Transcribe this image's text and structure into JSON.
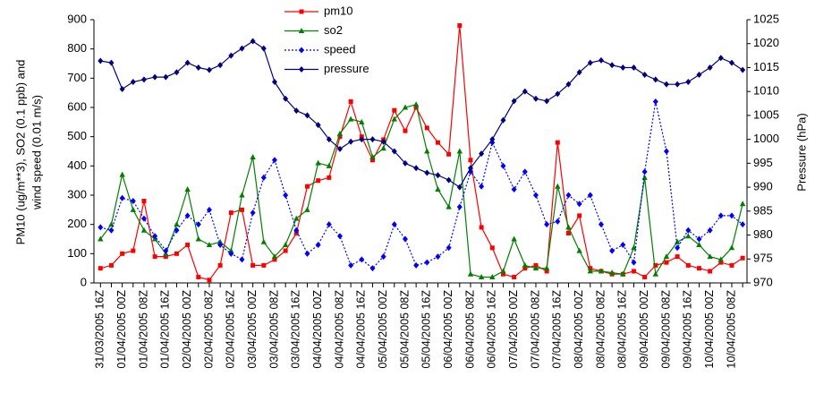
{
  "chart_data": {
    "type": "line",
    "y_label": [
      "PM10 (ug/m**3), SO2 (0.1 ppb) and",
      "wind speed (0.01 m/s)"
    ],
    "y2_label": "Pressure (hPa)",
    "categories": [
      "31/03/2005 16Z",
      null,
      "01/04/2005 00Z",
      null,
      "01/04/2005 08Z",
      null,
      "01/04/2005 16Z",
      null,
      "02/04/2005 00Z",
      null,
      "02/04/2005 08Z",
      null,
      "02/04/2005 16Z",
      null,
      "03/04/2005 00Z",
      null,
      "03/04/2005 08Z",
      null,
      "03/04/2005 16Z",
      null,
      "04/04/2005 00Z",
      null,
      "04/04/2005 08Z",
      null,
      "04/04/2005 16Z",
      null,
      "05/04/2005 00Z",
      null,
      "05/04/2005 08Z",
      null,
      "05/04/2005 16Z",
      null,
      "06/04/2005 00Z",
      null,
      "06/04/2005 08Z",
      null,
      "06/04/2005 16Z",
      null,
      "07/04/2005 00Z",
      null,
      "07/04/2005 08Z",
      null,
      "07/04/2005 16Z",
      null,
      "08/04/2005 00Z",
      null,
      "08/04/2005 08Z",
      null,
      "08/04/2005 16Z",
      null,
      "09/04/2005 00Z",
      null,
      "09/04/2005 08Z",
      null,
      "09/04/2005 16Z",
      null,
      "10/04/2005 00Z",
      null,
      "10/04/2005 08Z",
      null
    ],
    "series": [
      {
        "name": "pm10",
        "color": "#ff0000",
        "marker": "square",
        "line_style": "solid",
        "values": [
          50,
          60,
          100,
          110,
          280,
          90,
          90,
          100,
          130,
          20,
          10,
          60,
          240,
          250,
          60,
          60,
          80,
          110,
          170,
          330,
          350,
          360,
          500,
          620,
          500,
          420,
          490,
          590,
          520,
          600,
          530,
          480,
          440,
          880,
          420,
          190,
          120,
          30,
          20,
          50,
          60,
          40,
          480,
          170,
          230,
          50,
          40,
          30,
          30,
          40,
          20,
          60,
          70,
          90,
          60,
          50,
          40,
          70,
          60,
          85
        ]
      },
      {
        "name": "so2",
        "color": "#008000",
        "marker": "triangle",
        "line_style": "solid",
        "values": [
          150,
          200,
          370,
          250,
          180,
          150,
          100,
          200,
          320,
          150,
          130,
          140,
          110,
          300,
          430,
          140,
          90,
          130,
          220,
          250,
          410,
          400,
          510,
          560,
          550,
          430,
          460,
          560,
          600,
          610,
          450,
          320,
          260,
          450,
          30,
          20,
          20,
          40,
          150,
          60,
          50,
          50,
          330,
          190,
          110,
          40,
          40,
          35,
          30,
          120,
          360,
          30,
          90,
          140,
          160,
          130,
          90,
          80,
          120,
          270
        ]
      },
      {
        "name": "speed",
        "color": "#0000ff",
        "marker": "diamond",
        "line_style": "dotted",
        "values": [
          190,
          180,
          290,
          280,
          220,
          160,
          110,
          180,
          230,
          200,
          250,
          130,
          100,
          80,
          240,
          360,
          420,
          300,
          180,
          100,
          130,
          200,
          160,
          60,
          80,
          50,
          90,
          200,
          150,
          60,
          70,
          90,
          120,
          260,
          380,
          330,
          480,
          400,
          320,
          380,
          300,
          200,
          210,
          300,
          270,
          300,
          200,
          110,
          130,
          70,
          380,
          620,
          450,
          120,
          180,
          150,
          180,
          230,
          230,
          200
        ]
      },
      {
        "name": "pressure",
        "color": "#000080",
        "marker": "diamond",
        "line_style": "solid",
        "axis": "y2",
        "values": [
          1016.4,
          1016,
          1010.5,
          1012,
          1012.5,
          1013,
          1013,
          1014,
          1016,
          1015,
          1014.5,
          1015.5,
          1017.5,
          1019,
          1020.5,
          1019,
          1012,
          1008.5,
          1006,
          1005,
          1003,
          1000,
          998,
          999.5,
          1000,
          1000,
          999.5,
          997.5,
          995,
          994,
          993,
          992.5,
          991.5,
          990,
          994,
          997,
          1000,
          1004,
          1008,
          1010,
          1008.5,
          1008,
          1009.5,
          1011.5,
          1014,
          1016,
          1016.5,
          1015.5,
          1015,
          1015,
          1013.5,
          1012.5,
          1011.5,
          1011.5,
          1012,
          1013.5,
          1015,
          1017,
          1016,
          1014.5
        ]
      }
    ],
    "ylim": [
      0,
      900
    ],
    "yticks": [
      0,
      100,
      200,
      300,
      400,
      500,
      600,
      700,
      800,
      900
    ],
    "y2lim": [
      970,
      1025
    ],
    "y2ticks": [
      970,
      975,
      980,
      985,
      990,
      995,
      1000,
      1005,
      1010,
      1015,
      1020,
      1025
    ],
    "grid": false,
    "legend": "top-center"
  }
}
